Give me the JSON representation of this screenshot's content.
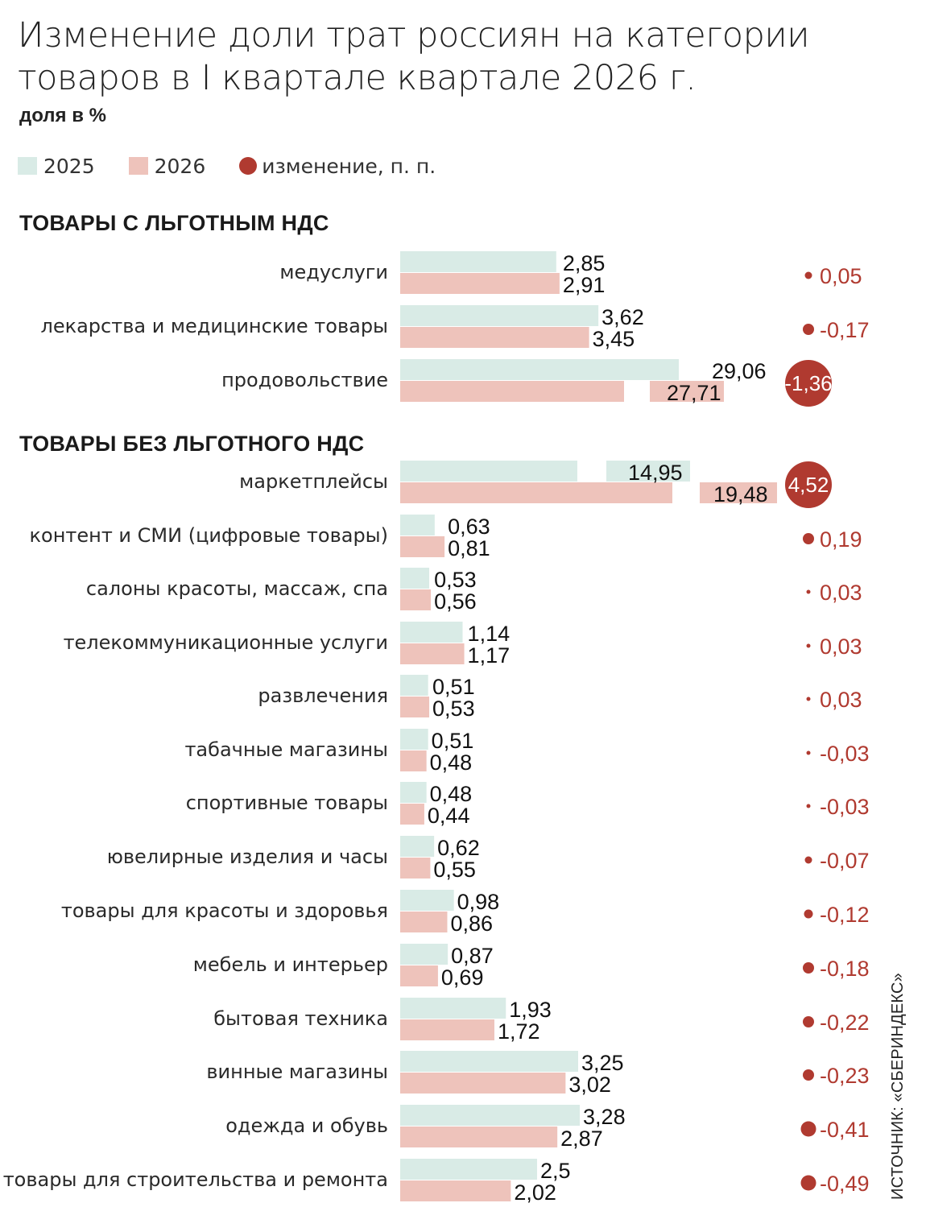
{
  "title": "Изменение доли трат россиян на категории товаров в I квартале квартале 2026 г.",
  "subtitle": "доля в %",
  "legend": [
    {
      "label": "2025",
      "color": "#d9ebe6"
    },
    {
      "label": "2026",
      "color": "#eec3bb"
    },
    {
      "label": "изменение, п. п.",
      "color": "#b03a30"
    }
  ],
  "source": "ИСТОЧНИК: «СБЕРИНДЕКС»",
  "chart_data": {
    "type": "bar",
    "orientation": "horizontal",
    "series": [
      {
        "name": "2025",
        "color": "#d9ebe6"
      },
      {
        "name": "2026",
        "color": "#eec3bb"
      },
      {
        "name": "изменение, п. п.",
        "color": "#b03a30"
      }
    ],
    "groups": [
      {
        "label": "ТОВАРЫ С ЛЬГОТНЫМ НДС",
        "rows": [
          {
            "category": "медуслуги",
            "v2025": 2.85,
            "v2026": 2.91,
            "l2025": "2,85",
            "l2026": "2,91",
            "change": 0.05,
            "change_label": "0,05"
          },
          {
            "category": "лекарства и медицинские товары",
            "v2025": 3.62,
            "v2026": 3.45,
            "l2025": "3,62",
            "l2026": "3,45",
            "change": -0.17,
            "change_label": "-0,17"
          },
          {
            "category": "продовольствие",
            "v2025": 29.06,
            "v2026": 27.71,
            "l2025": "29,06",
            "l2026": "27,71",
            "change": -1.36,
            "change_label": "-1,36",
            "axis_break": true
          }
        ]
      },
      {
        "label": "ТОВАРЫ БЕЗ ЛЬГОТНОГО НДС",
        "rows": [
          {
            "category": "маркетплейсы",
            "v2025": 14.95,
            "v2026": 19.48,
            "l2025": "14,95",
            "l2026": "19,48",
            "change": 4.52,
            "change_label": "4,52",
            "axis_break": true
          },
          {
            "category": "контент и СМИ (цифровые товары)",
            "v2025": 0.63,
            "v2026": 0.81,
            "l2025": "0,63",
            "l2026": "0,81",
            "change": 0.19,
            "change_label": "0,19"
          },
          {
            "category": "салоны красоты, массаж, спа",
            "v2025": 0.53,
            "v2026": 0.56,
            "l2025": "0,53",
            "l2026": "0,56",
            "change": 0.03,
            "change_label": "0,03"
          },
          {
            "category": "телекоммуникационные услуги",
            "v2025": 1.14,
            "v2026": 1.17,
            "l2025": "1,14",
            "l2026": "1,17",
            "change": 0.03,
            "change_label": "0,03"
          },
          {
            "category": "развлечения",
            "v2025": 0.51,
            "v2026": 0.53,
            "l2025": "0,51",
            "l2026": "0,53",
            "change": 0.03,
            "change_label": "0,03"
          },
          {
            "category": "табачные магазины",
            "v2025": 0.51,
            "v2026": 0.48,
            "l2025": "0,51",
            "l2026": "0,48",
            "change": -0.03,
            "change_label": "-0,03"
          },
          {
            "category": "спортивные товары",
            "v2025": 0.48,
            "v2026": 0.44,
            "l2025": "0,48",
            "l2026": "0,44",
            "change": -0.03,
            "change_label": "-0,03"
          },
          {
            "category": "ювелирные изделия и часы",
            "v2025": 0.62,
            "v2026": 0.55,
            "l2025": "0,62",
            "l2026": "0,55",
            "change": -0.07,
            "change_label": "-0,07"
          },
          {
            "category": "товары для красоты и здоровья",
            "v2025": 0.98,
            "v2026": 0.86,
            "l2025": "0,98",
            "l2026": "0,86",
            "change": -0.12,
            "change_label": "-0,12"
          },
          {
            "category": "мебель и интерьер",
            "v2025": 0.87,
            "v2026": 0.69,
            "l2025": "0,87",
            "l2026": "0,69",
            "change": -0.18,
            "change_label": "-0,18"
          },
          {
            "category": "бытовая техника",
            "v2025": 1.93,
            "v2026": 1.72,
            "l2025": "1,93",
            "l2026": "1,72",
            "change": -0.22,
            "change_label": "-0,22"
          },
          {
            "category": "винные магазины",
            "v2025": 3.25,
            "v2026": 3.02,
            "l2025": "3,25",
            "l2026": "3,02",
            "change": -0.23,
            "change_label": "-0,23"
          },
          {
            "category": "одежда и обувь",
            "v2025": 3.28,
            "v2026": 2.87,
            "l2025": "3,28",
            "l2026": "2,87",
            "change": -0.41,
            "change_label": "-0,41"
          },
          {
            "category": "товары для строительства и ремонта",
            "v2025": 2.5,
            "v2026": 2.02,
            "l2025": "2,5",
            "l2026": "2,02",
            "change": -0.49,
            "change_label": "-0,49"
          }
        ]
      }
    ]
  }
}
